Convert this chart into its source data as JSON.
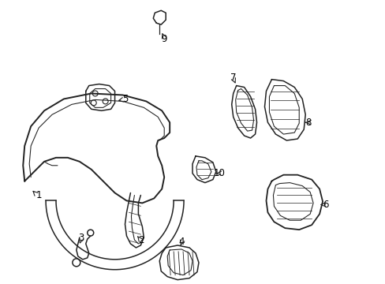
{
  "background_color": "#ffffff",
  "line_color": "#222222",
  "label_color": "#000000",
  "line_width": 1.1,
  "fig_width": 4.89,
  "fig_height": 3.6,
  "dpi": 100
}
